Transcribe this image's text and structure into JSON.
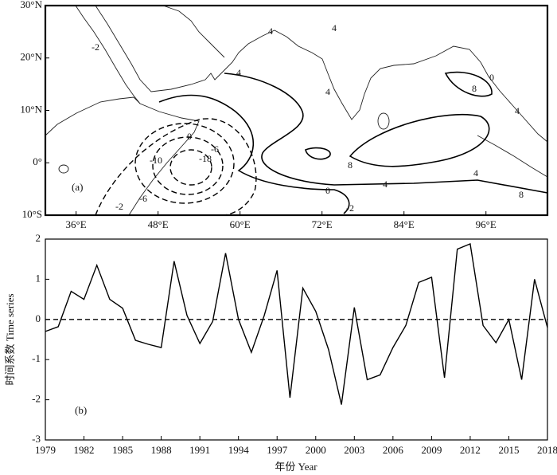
{
  "chart_data": [
    {
      "type": "contour",
      "panel_label": "(a)",
      "xlim": [
        31.5,
        105
      ],
      "ylim": [
        -10,
        30
      ],
      "xticks": [
        {
          "value": 36,
          "label": "36°E"
        },
        {
          "value": 48,
          "label": "48°E"
        },
        {
          "value": 60,
          "label": "60°E"
        },
        {
          "value": 72,
          "label": "72°E"
        },
        {
          "value": 84,
          "label": "84°E"
        },
        {
          "value": 96,
          "label": "96°E"
        }
      ],
      "yticks": [
        {
          "value": -10,
          "label": "10°S"
        },
        {
          "value": 0,
          "label": "0°"
        },
        {
          "value": 10,
          "label": "10°N"
        },
        {
          "value": 20,
          "label": "20°N"
        },
        {
          "value": 30,
          "label": "30°N"
        }
      ],
      "contour_labels": [
        4,
        4,
        4,
        4,
        0,
        4,
        8,
        8,
        4,
        0,
        -2,
        -2,
        -6,
        -10,
        -18,
        -6,
        4,
        8,
        -2,
        0
      ]
    },
    {
      "type": "line",
      "panel_label": "(b)",
      "xlabel": "年份 Year",
      "ylabel": "时间系数 Time series",
      "x": [
        1979,
        1980,
        1981,
        1982,
        1983,
        1984,
        1985,
        1986,
        1987,
        1988,
        1989,
        1990,
        1991,
        1992,
        1993,
        1994,
        1995,
        1996,
        1997,
        1998,
        1999,
        2000,
        2001,
        2002,
        2003,
        2004,
        2005,
        2006,
        2007,
        2008,
        2009,
        2010,
        2011,
        2012,
        2013,
        2014,
        2015,
        2016,
        2017,
        2018
      ],
      "values": [
        -0.3,
        -0.18,
        0.7,
        0.5,
        1.35,
        0.5,
        0.28,
        -0.52,
        -0.62,
        -0.7,
        1.45,
        0.1,
        -0.6,
        -0.05,
        1.65,
        0,
        -0.82,
        0.1,
        1.22,
        -1.95,
        0.78,
        0.2,
        -0.75,
        -2.12,
        0.3,
        -1.5,
        -1.38,
        -0.7,
        -0.15,
        0.92,
        1.05,
        -1.45,
        1.75,
        1.88,
        -0.15,
        -0.58,
        0,
        -1.5,
        1.0,
        -0.2
      ],
      "color": "#000000",
      "hline": 0,
      "xlim": [
        1979,
        2018
      ],
      "ylim": [
        -3,
        2
      ],
      "xticks": [
        1979,
        1982,
        1985,
        1988,
        1991,
        1994,
        1997,
        2000,
        2003,
        2006,
        2009,
        2012,
        2015,
        2018
      ],
      "yticks": [
        -3,
        -2,
        -1,
        0,
        1,
        2
      ]
    }
  ]
}
